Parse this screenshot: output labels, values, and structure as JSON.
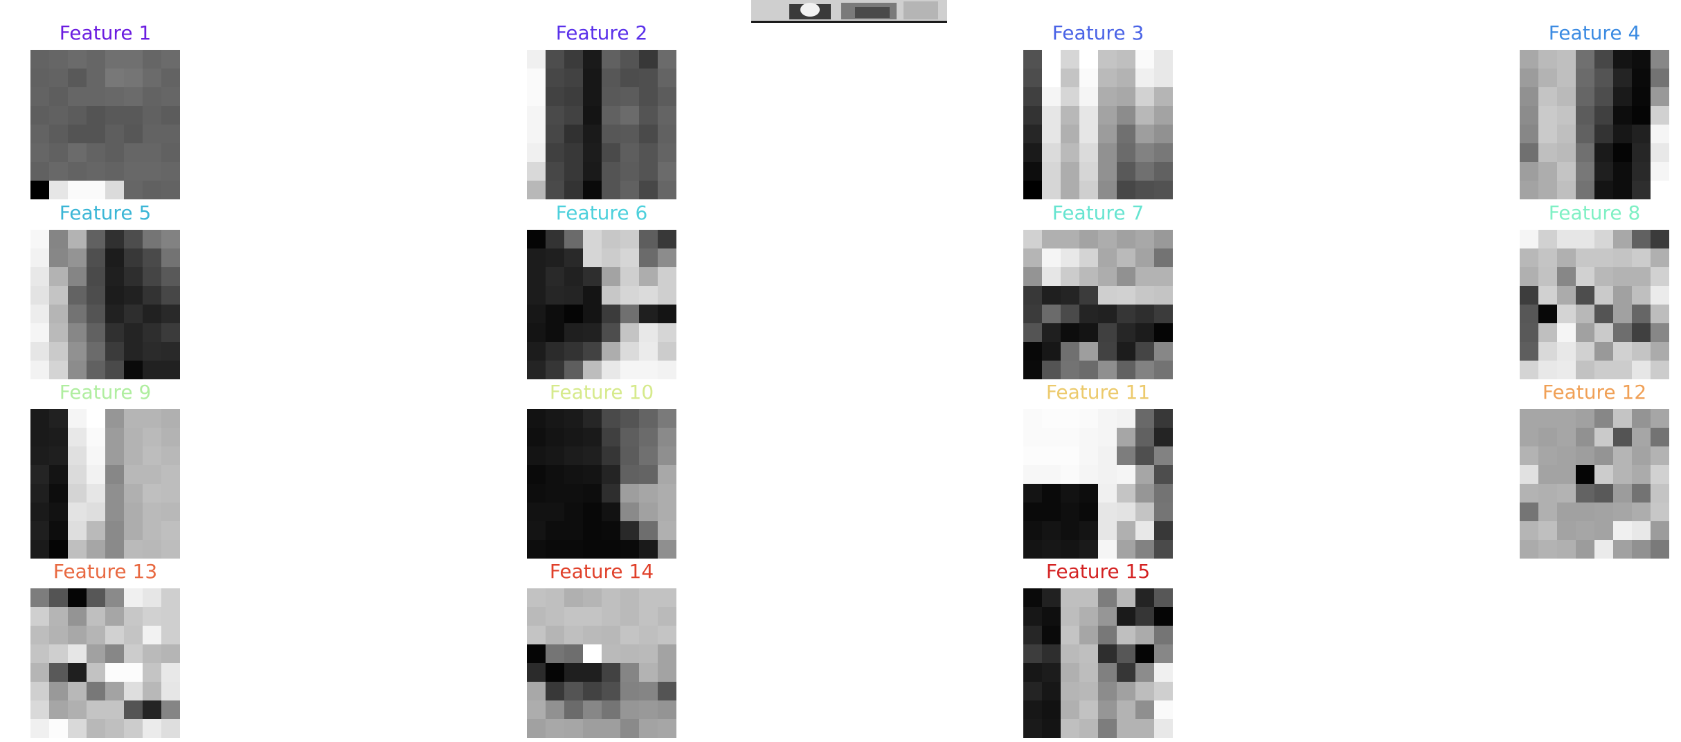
{
  "features": [
    {
      "title": "Feature 1",
      "color": "#6b1de0",
      "cells": [
        [
          99,
          102,
          107,
          102,
          112,
          112,
          102,
          107
        ],
        [
          97,
          99,
          89,
          102,
          120,
          117,
          107,
          99
        ],
        [
          99,
          94,
          102,
          102,
          104,
          107,
          99,
          102
        ],
        [
          94,
          97,
          92,
          84,
          89,
          89,
          97,
          92
        ],
        [
          99,
          92,
          84,
          84,
          94,
          87,
          99,
          99
        ],
        [
          102,
          97,
          107,
          99,
          94,
          102,
          102,
          97
        ],
        [
          97,
          104,
          99,
          102,
          99,
          104,
          104,
          102
        ],
        [
          0,
          230,
          250,
          250,
          219,
          102,
          97,
          99
        ]
      ]
    },
    {
      "title": "Feature 2",
      "color": "#5a31ea",
      "cells": [
        [
          240,
          77,
          59,
          26,
          97,
          84,
          56,
          107
        ],
        [
          250,
          71,
          66,
          23,
          87,
          77,
          79,
          100
        ],
        [
          250,
          66,
          61,
          23,
          89,
          92,
          79,
          92
        ],
        [
          245,
          74,
          66,
          20,
          97,
          107,
          84,
          100
        ],
        [
          245,
          71,
          49,
          26,
          87,
          89,
          74,
          97
        ],
        [
          240,
          64,
          56,
          28,
          74,
          94,
          84,
          100
        ],
        [
          217,
          71,
          56,
          26,
          84,
          92,
          84,
          107
        ],
        [
          184,
          74,
          51,
          10,
          84,
          97,
          71,
          102
        ]
      ]
    },
    {
      "title": "Feature 3",
      "color": "#4a63e6",
      "cells": [
        [
          82,
          255,
          214,
          255,
          196,
          191,
          250,
          232
        ],
        [
          77,
          255,
          196,
          250,
          186,
          179,
          240,
          232
        ],
        [
          64,
          245,
          214,
          245,
          173,
          168,
          210,
          181
        ],
        [
          51,
          230,
          184,
          230,
          163,
          140,
          184,
          163
        ],
        [
          38,
          230,
          176,
          230,
          156,
          112,
          158,
          145
        ],
        [
          26,
          219,
          186,
          219,
          145,
          107,
          130,
          120
        ],
        [
          13,
          214,
          173,
          214,
          145,
          89,
          112,
          97
        ],
        [
          0,
          214,
          173,
          207,
          140,
          71,
          79,
          82
        ]
      ]
    },
    {
      "title": "Feature 4",
      "color": "#3b8be2",
      "cells": [
        [
          168,
          186,
          191,
          112,
          71,
          20,
          13,
          135
        ],
        [
          156,
          179,
          191,
          107,
          84,
          36,
          10,
          115
        ],
        [
          145,
          196,
          186,
          102,
          77,
          26,
          8,
          153
        ],
        [
          140,
          202,
          196,
          92,
          64,
          13,
          5,
          209
        ],
        [
          135,
          202,
          191,
          97,
          51,
          23,
          33,
          245
        ],
        [
          112,
          191,
          186,
          112,
          26,
          5,
          38,
          232
        ],
        [
          158,
          173,
          196,
          120,
          31,
          13,
          41,
          245
        ],
        [
          163,
          173,
          191,
          115,
          20,
          13,
          46,
          255
        ]
      ]
    },
    {
      "title": "Feature 5",
      "color": "#3bb6d6",
      "cells": [
        [
          247,
          133,
          179,
          97,
          48,
          77,
          117,
          130
        ],
        [
          242,
          135,
          148,
          79,
          28,
          56,
          74,
          115
        ],
        [
          232,
          179,
          133,
          74,
          31,
          46,
          69,
          89
        ],
        [
          227,
          196,
          99,
          77,
          28,
          33,
          51,
          71
        ],
        [
          237,
          181,
          115,
          84,
          33,
          46,
          33,
          41
        ],
        [
          245,
          186,
          135,
          97,
          48,
          36,
          46,
          59
        ],
        [
          230,
          202,
          145,
          107,
          59,
          36,
          43,
          41
        ],
        [
          242,
          212,
          140,
          97,
          74,
          10,
          33,
          33
        ]
      ]
    },
    {
      "title": "Feature 6",
      "color": "#4dd0dc",
      "cells": [
        [
          5,
          51,
          107,
          214,
          199,
          204,
          94,
          56
        ],
        [
          28,
          31,
          41,
          214,
          204,
          214,
          107,
          140
        ],
        [
          28,
          41,
          33,
          46,
          163,
          207,
          173,
          207
        ],
        [
          28,
          38,
          36,
          20,
          199,
          214,
          219,
          207
        ],
        [
          23,
          13,
          5,
          20,
          59,
          112,
          31,
          20
        ],
        [
          20,
          13,
          31,
          33,
          77,
          196,
          232,
          214
        ],
        [
          28,
          43,
          51,
          66,
          173,
          219,
          235,
          204
        ],
        [
          36,
          54,
          94,
          189,
          232,
          245,
          245,
          242
        ]
      ]
    },
    {
      "title": "Feature 7",
      "color": "#66e4d0",
      "cells": [
        [
          209,
          176,
          176,
          163,
          173,
          161,
          168,
          153
        ],
        [
          181,
          245,
          232,
          212,
          168,
          186,
          163,
          115
        ],
        [
          148,
          230,
          204,
          186,
          173,
          145,
          179,
          179
        ],
        [
          56,
          31,
          36,
          59,
          207,
          209,
          199,
          196
        ],
        [
          59,
          107,
          74,
          36,
          33,
          54,
          46,
          59
        ],
        [
          84,
          31,
          13,
          20,
          64,
          38,
          28,
          5
        ],
        [
          8,
          23,
          112,
          158,
          66,
          28,
          69,
          135
        ],
        [
          10,
          84,
          115,
          107,
          143,
          97,
          130,
          115
        ]
      ]
    },
    {
      "title": "Feature 8",
      "color": "#7ff0c4",
      "cells": [
        [
          245,
          209,
          230,
          230,
          214,
          168,
          97,
          59
        ],
        [
          184,
          196,
          176,
          199,
          199,
          196,
          204,
          176
        ],
        [
          176,
          194,
          135,
          209,
          184,
          179,
          179,
          209
        ],
        [
          61,
          209,
          171,
          77,
          202,
          161,
          191,
          235
        ],
        [
          87,
          8,
          212,
          184,
          84,
          161,
          102,
          189
        ],
        [
          89,
          191,
          245,
          161,
          202,
          110,
          64,
          135
        ],
        [
          94,
          217,
          232,
          209,
          153,
          209,
          196,
          171
        ],
        [
          212,
          232,
          235,
          194,
          204,
          204,
          230,
          204
        ]
      ]
    },
    {
      "title": "Feature 9",
      "color": "#b0eea0",
      "cells": [
        [
          26,
          33,
          245,
          255,
          150,
          181,
          181,
          176
        ],
        [
          26,
          28,
          232,
          250,
          156,
          179,
          186,
          179
        ],
        [
          28,
          31,
          224,
          247,
          156,
          179,
          189,
          184
        ],
        [
          36,
          20,
          219,
          242,
          135,
          184,
          184,
          189
        ],
        [
          31,
          13,
          212,
          230,
          143,
          176,
          191,
          189
        ],
        [
          26,
          18,
          227,
          222,
          143,
          173,
          186,
          184
        ],
        [
          31,
          13,
          222,
          186,
          138,
          173,
          186,
          191
        ],
        [
          26,
          5,
          191,
          166,
          138,
          186,
          184,
          189
        ]
      ]
    },
    {
      "title": "Feature 10",
      "color": "#d6ea8c",
      "cells": [
        [
          18,
          23,
          26,
          38,
          74,
          84,
          100,
          122
        ],
        [
          15,
          20,
          23,
          26,
          64,
          94,
          107,
          138
        ],
        [
          20,
          23,
          28,
          31,
          54,
          92,
          112,
          143
        ],
        [
          10,
          15,
          18,
          20,
          36,
          97,
          100,
          168
        ],
        [
          13,
          15,
          15,
          13,
          46,
          158,
          166,
          173
        ],
        [
          18,
          18,
          13,
          8,
          18,
          138,
          161,
          173
        ],
        [
          20,
          13,
          13,
          8,
          10,
          41,
          110,
          176
        ],
        [
          13,
          10,
          10,
          8,
          8,
          10,
          26,
          143
        ]
      ]
    },
    {
      "title": "Feature 11",
      "color": "#ecca6c",
      "cells": [
        [
          250,
          252,
          252,
          250,
          245,
          242,
          105,
          56
        ],
        [
          250,
          250,
          250,
          247,
          245,
          166,
          97,
          36
        ],
        [
          252,
          252,
          252,
          247,
          242,
          125,
          79,
          130
        ],
        [
          247,
          247,
          250,
          245,
          242,
          245,
          166,
          77
        ],
        [
          20,
          10,
          18,
          13,
          240,
          196,
          150,
          115
        ],
        [
          10,
          10,
          15,
          10,
          230,
          227,
          196,
          117
        ],
        [
          15,
          20,
          15,
          20,
          230,
          176,
          232,
          56
        ],
        [
          20,
          23,
          20,
          26,
          245,
          163,
          130,
          74
        ]
      ]
    },
    {
      "title": "Feature 12",
      "color": "#f0a056",
      "cells": [
        [
          166,
          166,
          166,
          161,
          135,
          196,
          148,
          166
        ],
        [
          166,
          161,
          166,
          145,
          202,
          84,
          166,
          115
        ],
        [
          179,
          166,
          163,
          158,
          148,
          181,
          163,
          179
        ],
        [
          225,
          163,
          163,
          5,
          204,
          181,
          171,
          209
        ],
        [
          179,
          176,
          179,
          99,
          89,
          156,
          115,
          196
        ],
        [
          117,
          176,
          161,
          161,
          163,
          166,
          173,
          199
        ],
        [
          181,
          191,
          163,
          166,
          163,
          240,
          232,
          156
        ],
        [
          171,
          179,
          176,
          156,
          235,
          161,
          145,
          122
        ]
      ]
    },
    {
      "title": "Feature 13",
      "color": "#e86840",
      "cells": [
        [
          125,
          84,
          5,
          87,
          138,
          240,
          230,
          207
        ],
        [
          207,
          181,
          148,
          191,
          166,
          199,
          209,
          207
        ],
        [
          189,
          179,
          168,
          181,
          209,
          196,
          242,
          207
        ],
        [
          196,
          207,
          230,
          161,
          135,
          204,
          186,
          181
        ],
        [
          181,
          89,
          31,
          194,
          252,
          252,
          196,
          232
        ],
        [
          207,
          153,
          184,
          120,
          163,
          222,
          184,
          230
        ],
        [
          217,
          166,
          176,
          196,
          196,
          84,
          36,
          133
        ],
        [
          240,
          252,
          217,
          184,
          191,
          204,
          235,
          222
        ]
      ]
    },
    {
      "title": "Feature 14",
      "color": "#e0402a",
      "cells": [
        [
          194,
          191,
          176,
          181,
          191,
          186,
          194,
          194
        ],
        [
          186,
          191,
          196,
          196,
          191,
          186,
          194,
          186
        ],
        [
          196,
          181,
          191,
          186,
          184,
          196,
          191,
          196
        ],
        [
          5,
          117,
          110,
          255,
          186,
          184,
          186,
          163
        ],
        [
          43,
          5,
          31,
          31,
          66,
          133,
          179,
          163
        ],
        [
          168,
          56,
          84,
          66,
          79,
          130,
          133,
          84
        ],
        [
          173,
          145,
          107,
          135,
          117,
          150,
          153,
          148
        ],
        [
          161,
          168,
          166,
          158,
          158,
          138,
          163,
          166
        ]
      ]
    },
    {
      "title": "Feature 15",
      "color": "#d42222",
      "cells": [
        [
          10,
          33,
          191,
          191,
          125,
          184,
          36,
          87
        ],
        [
          23,
          15,
          189,
          176,
          150,
          26,
          54,
          5
        ],
        [
          38,
          10,
          196,
          166,
          120,
          191,
          171,
          117
        ],
        [
          61,
          46,
          186,
          191,
          46,
          87,
          5,
          135
        ],
        [
          23,
          28,
          176,
          189,
          128,
          54,
          140,
          240
        ],
        [
          36,
          23,
          181,
          184,
          140,
          161,
          189,
          207
        ],
        [
          23,
          18,
          176,
          194,
          150,
          179,
          143,
          250
        ],
        [
          26,
          20,
          191,
          184,
          125,
          179,
          179,
          232
        ]
      ]
    }
  ]
}
